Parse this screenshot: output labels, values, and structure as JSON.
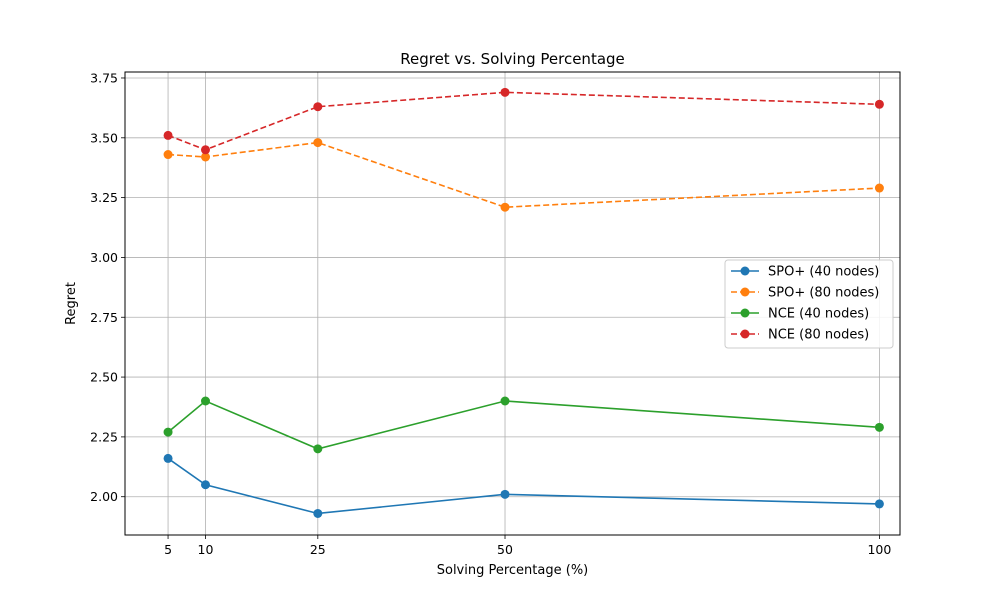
{
  "chart_data": {
    "type": "line",
    "title": "Regret vs. Solving Percentage",
    "xlabel": "Solving Percentage (%)",
    "ylabel": "Regret",
    "x": [
      5,
      10,
      25,
      50,
      100
    ],
    "x_ticks": [
      5,
      10,
      25,
      50,
      100
    ],
    "xlim": [
      -0.75,
      102.75
    ],
    "ylim": [
      1.84,
      3.775
    ],
    "y_ticks": [
      2.0,
      2.25,
      2.5,
      2.75,
      3.0,
      3.25,
      3.5,
      3.75
    ],
    "y_tick_labels": [
      "2.00",
      "2.25",
      "2.50",
      "2.75",
      "3.00",
      "3.25",
      "3.50",
      "3.75"
    ],
    "grid": true,
    "legend_position": "center-right",
    "series": [
      {
        "name": "SPO+ (40 nodes)",
        "values": [
          2.16,
          2.05,
          1.93,
          2.01,
          1.97
        ],
        "color": "#1f77b4",
        "dash": false
      },
      {
        "name": "SPO+ (80 nodes)",
        "values": [
          3.43,
          3.42,
          3.48,
          3.21,
          3.29
        ],
        "color": "#ff7f0e",
        "dash": true
      },
      {
        "name": "NCE (40 nodes)",
        "values": [
          2.27,
          2.4,
          2.2,
          2.4,
          2.29
        ],
        "color": "#2ca02c",
        "dash": false
      },
      {
        "name": "NCE (80 nodes)",
        "values": [
          3.51,
          3.45,
          3.63,
          3.69,
          3.64
        ],
        "color": "#d62728",
        "dash": true
      }
    ]
  }
}
